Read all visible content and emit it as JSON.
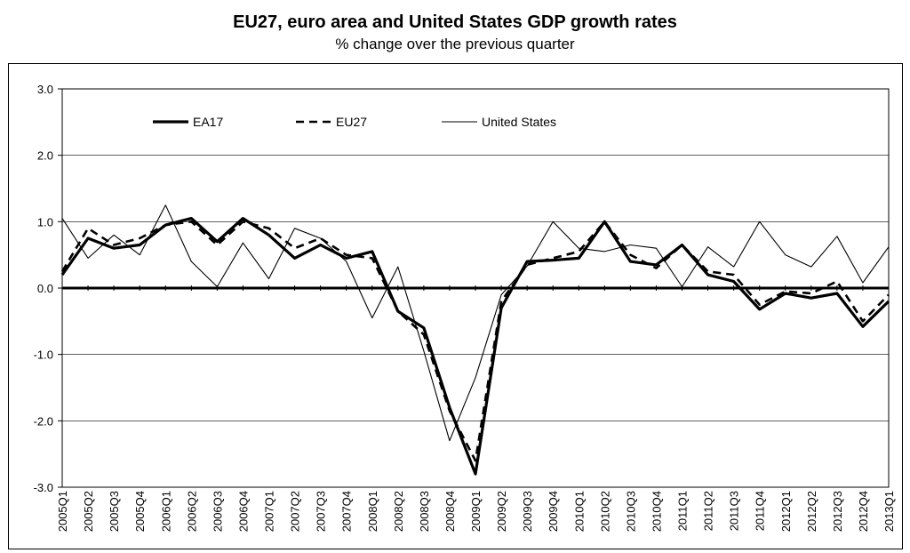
{
  "header": {
    "title": "EU27, euro area and United States GDP growth rates",
    "subtitle": "% change over the previous quarter"
  },
  "chart_data": {
    "type": "line",
    "title": "EU27, euro area and United States GDP growth rates",
    "subtitle": "% change over the previous quarter",
    "xlabel": "",
    "ylabel": "",
    "ylim": [
      -3.0,
      3.0
    ],
    "ytick_labels": [
      "3.0",
      "2.0",
      "1.0",
      "0.0",
      "-1.0",
      "-2.0",
      "-3.0"
    ],
    "grid": true,
    "legend_position": "top-left",
    "categories": [
      "2005Q1",
      "2005Q2",
      "2005Q3",
      "2005Q4",
      "2006Q1",
      "2006Q2",
      "2006Q3",
      "2006Q4",
      "2007Q1",
      "2007Q2",
      "2007Q3",
      "2007Q4",
      "2008Q1",
      "2008Q2",
      "2008Q3",
      "2008Q4",
      "2009Q1",
      "2009Q2",
      "2009Q3",
      "2009Q4",
      "2010Q1",
      "2010Q2",
      "2010Q3",
      "2010Q4",
      "2011Q1",
      "2011Q2",
      "2011Q3",
      "2011Q4",
      "2012Q1",
      "2012Q2",
      "2012Q3",
      "2012Q4",
      "2013Q1"
    ],
    "series": [
      {
        "name": "EA17",
        "style": "thick",
        "values": [
          0.2,
          0.75,
          0.6,
          0.65,
          0.95,
          1.05,
          0.7,
          1.05,
          0.8,
          0.45,
          0.65,
          0.45,
          0.55,
          -0.35,
          -0.6,
          -1.8,
          -2.8,
          -0.3,
          0.4,
          0.42,
          0.45,
          1.0,
          0.4,
          0.35,
          0.65,
          0.2,
          0.1,
          -0.32,
          -0.08,
          -0.15,
          -0.08,
          -0.58,
          -0.2
        ]
      },
      {
        "name": "EU27",
        "style": "dashed",
        "values": [
          0.25,
          0.9,
          0.65,
          0.75,
          0.95,
          1.0,
          0.65,
          1.0,
          0.9,
          0.6,
          0.75,
          0.5,
          0.45,
          -0.35,
          -0.7,
          -1.85,
          -2.6,
          -0.2,
          0.35,
          0.45,
          0.55,
          1.0,
          0.5,
          0.3,
          0.65,
          0.25,
          0.2,
          -0.25,
          -0.05,
          -0.08,
          0.1,
          -0.5,
          -0.1
        ]
      },
      {
        "name": "United States",
        "style": "thin",
        "values": [
          1.05,
          0.45,
          0.8,
          0.5,
          1.25,
          0.4,
          0.02,
          0.68,
          0.14,
          0.9,
          0.75,
          0.4,
          -0.45,
          0.32,
          -0.95,
          -2.3,
          -1.35,
          -0.1,
          0.33,
          1.0,
          0.6,
          0.55,
          0.65,
          0.6,
          0.02,
          0.62,
          0.32,
          1.0,
          0.5,
          0.32,
          0.78,
          0.08,
          0.62
        ]
      }
    ]
  }
}
